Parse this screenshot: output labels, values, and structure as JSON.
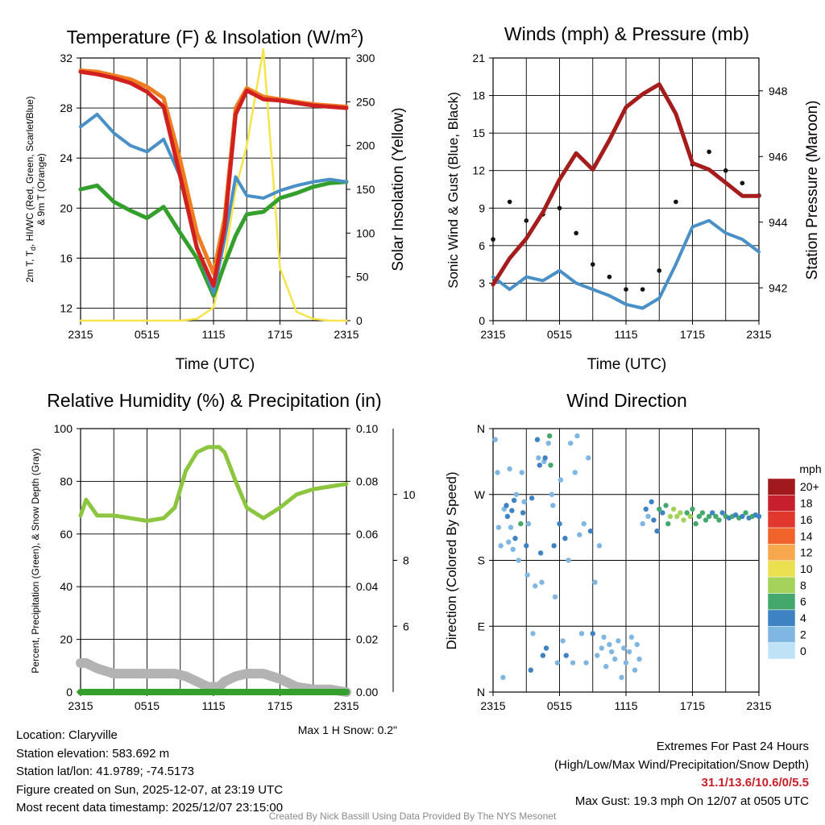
{
  "colors": {
    "red": "#d02020",
    "green": "#33a02c",
    "blue": "#4a90c8",
    "orange": "#f07c20",
    "yellow": "#f5e44a",
    "maroon": "#a51c1c",
    "gray": "#b3b3b3",
    "lightgreen": "#8cc63f",
    "black": "#111111"
  },
  "x_ticks": [
    "2315",
    "0515",
    "1115",
    "1715",
    "2315"
  ],
  "time_axis_label": "Time (UTC)",
  "chart_data": [
    {
      "type": "line",
      "title": "Temperature (F) & Insolation (W/m2)",
      "title_main": "Temperature (F) & Insolation (W/m",
      "title_sup": "2",
      "title_end": ")",
      "xlabel": "Time (UTC)",
      "ylabel_lines": [
        "2m T, T",
        "d",
        ", HI/WC (Red, Green, Scarlet/Blue)",
        "& 9m T (Orange)"
      ],
      "ylabel2": "Solar Insolation (Yellow)",
      "x_hours": [
        0,
        1.5,
        3,
        4.5,
        6,
        7.5,
        9,
        10.5,
        12,
        13,
        14,
        15,
        16.5,
        18,
        19.5,
        21,
        22.5,
        24
      ],
      "ylim": [
        11,
        32
      ],
      "yticks": [
        12,
        16,
        20,
        24,
        28,
        32
      ],
      "y2lim": [
        0,
        300
      ],
      "y2ticks": [
        0,
        50,
        100,
        150,
        200,
        250,
        300
      ],
      "series": [
        {
          "name": "2m T",
          "color": "red",
          "values": [
            30.9,
            30.7,
            30.4,
            30.0,
            29.3,
            28.1,
            22.5,
            16.8,
            13.8,
            18.5,
            27.5,
            29.4,
            28.7,
            28.6,
            28.4,
            28.2,
            28.1,
            28.0
          ]
        },
        {
          "name": "9m T",
          "color": "orange",
          "values": [
            31.0,
            30.9,
            30.6,
            30.3,
            29.7,
            28.8,
            23.8,
            18.0,
            14.8,
            19.2,
            28.0,
            29.6,
            28.9,
            28.7,
            28.5,
            28.3,
            28.2,
            28.1
          ]
        },
        {
          "name": "Td",
          "color": "green",
          "values": [
            21.5,
            21.8,
            20.5,
            19.8,
            19.2,
            20.1,
            18.0,
            16.0,
            13.0,
            15.5,
            17.8,
            19.5,
            19.7,
            20.8,
            21.2,
            21.7,
            22.0,
            22.1
          ]
        },
        {
          "name": "HI/WC",
          "color": "blue",
          "values": [
            26.5,
            27.5,
            26.0,
            25.0,
            24.5,
            25.5,
            22.5,
            17.0,
            13.2,
            17.5,
            22.5,
            21.0,
            20.8,
            21.4,
            21.8,
            22.1,
            22.3,
            22.1
          ]
        },
        {
          "name": "Solar Insolation",
          "color": "yellow",
          "axis": "y2",
          "values": [
            0,
            0,
            0,
            0,
            0,
            0,
            0,
            2,
            15,
            70,
            150,
            200,
            310,
            60,
            10,
            2,
            0,
            0
          ]
        }
      ]
    },
    {
      "type": "line",
      "title": "Winds (mph) & Pressure (mb)",
      "xlabel": "Time (UTC)",
      "ylabel": "Sonic Wind & Gust (Blue, Black)",
      "ylabel2": "Station Pressure (Maroon)",
      "x_hours": [
        0,
        1.5,
        3,
        4.5,
        6,
        7.5,
        9,
        10.5,
        12,
        13.5,
        15,
        16.5,
        18,
        19.5,
        21,
        22.5,
        24
      ],
      "ylim": [
        0,
        21
      ],
      "yticks": [
        0,
        3,
        6,
        9,
        12,
        15,
        18,
        21
      ],
      "y2lim": [
        941.0,
        949.0
      ],
      "y2ticks": [
        942,
        944,
        946,
        948
      ],
      "series": [
        {
          "name": "Sonic Wind",
          "color": "blue",
          "values": [
            3.5,
            2.5,
            3.5,
            3.2,
            4.0,
            3.0,
            2.5,
            2.0,
            1.3,
            1.0,
            1.8,
            4.5,
            7.5,
            8.0,
            7.0,
            6.5,
            5.5
          ]
        },
        {
          "name": "Gust",
          "color": "black",
          "values": [
            6.5,
            9.5,
            8.0,
            8.5,
            9.0,
            7.0,
            4.5,
            3.5,
            2.5,
            2.5,
            4.0,
            9.5,
            12.5,
            13.5,
            12.0,
            11.0,
            10.0
          ]
        },
        {
          "name": "Station Pressure",
          "color": "maroon",
          "axis": "y2",
          "values": [
            942.1,
            942.9,
            943.5,
            944.3,
            945.3,
            946.1,
            945.6,
            946.5,
            947.5,
            947.9,
            948.2,
            947.3,
            945.8,
            945.6,
            945.2,
            944.8,
            944.8
          ]
        }
      ]
    },
    {
      "type": "line",
      "title": "Relative Humidity (%) & Precipitation (in)",
      "ylabel": "Percent, Precipitation (Green), & Snow Depth (Gray)",
      "x_hours": [
        0,
        0.5,
        1.5,
        3,
        4.5,
        6,
        7.5,
        8.5,
        9.5,
        10.5,
        11.5,
        12.5,
        13,
        14,
        15,
        16.5,
        18,
        19.5,
        21,
        22.5,
        24
      ],
      "ylim": [
        0,
        100
      ],
      "yticks": [
        0,
        20,
        40,
        60,
        80,
        100
      ],
      "y2lim": [
        0,
        0.1
      ],
      "y2ticks": [
        0.0,
        0.02,
        0.04,
        0.06,
        0.08,
        0.1
      ],
      "snow_axis_ticks": [
        6,
        8,
        10
      ],
      "series": [
        {
          "name": "Relative Humidity",
          "color": "lightgreen",
          "values": [
            67,
            73,
            67,
            67,
            66,
            65,
            66,
            70,
            84,
            91,
            93,
            93,
            91,
            80,
            70,
            66,
            70,
            75,
            77,
            78,
            79
          ]
        },
        {
          "name": "Snow Depth",
          "color": "gray",
          "values": [
            11,
            11,
            9,
            7,
            7,
            7,
            7,
            7,
            6,
            4,
            2,
            2,
            4,
            6,
            7,
            7,
            5,
            2,
            1,
            1,
            0
          ]
        },
        {
          "name": "Precipitation",
          "color": "green",
          "values": [
            0,
            0,
            0,
            0,
            0,
            0,
            0,
            0,
            0,
            0,
            0,
            0,
            0,
            0,
            0,
            0,
            0,
            0,
            0,
            0,
            0
          ]
        }
      ],
      "note": "Max 1 H Snow: 0.2\""
    },
    {
      "type": "scatter",
      "title": "Wind Direction",
      "ylabel": "Direction (Colored By Speed)",
      "ylim": [
        0,
        360
      ],
      "yticks": [
        {
          "v": 0,
          "label": "N"
        },
        {
          "v": 90,
          "label": "E"
        },
        {
          "v": 180,
          "label": "S"
        },
        {
          "v": 270,
          "label": "W"
        },
        {
          "v": 360,
          "label": "N"
        }
      ],
      "colorbar_unit": "mph",
      "colorbar": [
        {
          "label": "20+",
          "color": "#a0191c"
        },
        {
          "label": "18",
          "color": "#c8202a"
        },
        {
          "label": "16",
          "color": "#e0382c"
        },
        {
          "label": "14",
          "color": "#f0642c"
        },
        {
          "label": "12",
          "color": "#f8a84c"
        },
        {
          "label": "10",
          "color": "#eae050"
        },
        {
          "label": "8",
          "color": "#a4d25a"
        },
        {
          "label": "6",
          "color": "#44a86c"
        },
        {
          "label": "4",
          "color": "#3d82c2"
        },
        {
          "label": "2",
          "color": "#7fb6e2"
        },
        {
          "label": "0",
          "color": "#c0e2f6"
        }
      ],
      "points": [
        [
          0.2,
          345,
          2
        ],
        [
          0.4,
          300,
          2
        ],
        [
          0.5,
          225,
          3
        ],
        [
          0.7,
          200,
          3
        ],
        [
          0.9,
          20,
          2
        ],
        [
          1.0,
          250,
          3
        ],
        [
          1.2,
          255,
          4
        ],
        [
          1.3,
          240,
          4
        ],
        [
          1.4,
          205,
          3
        ],
        [
          1.5,
          305,
          3
        ],
        [
          1.6,
          225,
          3
        ],
        [
          1.7,
          248,
          4
        ],
        [
          1.8,
          195,
          3
        ],
        [
          1.9,
          262,
          5
        ],
        [
          2.0,
          210,
          4
        ],
        [
          2.1,
          270,
          2
        ],
        [
          2.3,
          180,
          3
        ],
        [
          2.5,
          230,
          6
        ],
        [
          2.6,
          300,
          3
        ],
        [
          2.7,
          245,
          4
        ],
        [
          2.8,
          260,
          3
        ],
        [
          3.0,
          200,
          4
        ],
        [
          3.1,
          160,
          3
        ],
        [
          3.2,
          230,
          3
        ],
        [
          3.4,
          30,
          4
        ],
        [
          3.5,
          265,
          4
        ],
        [
          3.6,
          80,
          3
        ],
        [
          3.8,
          145,
          2
        ],
        [
          4.0,
          345,
          4
        ],
        [
          4.1,
          320,
          3
        ],
        [
          4.2,
          310,
          5
        ],
        [
          4.3,
          190,
          4
        ],
        [
          4.4,
          150,
          3
        ],
        [
          4.5,
          50,
          4
        ],
        [
          4.6,
          315,
          3
        ],
        [
          4.7,
          320,
          4
        ],
        [
          4.8,
          60,
          5
        ],
        [
          5.0,
          340,
          3
        ],
        [
          5.1,
          350,
          6
        ],
        [
          5.2,
          310,
          6
        ],
        [
          5.3,
          270,
          3
        ],
        [
          5.4,
          255,
          3
        ],
        [
          5.5,
          200,
          4
        ],
        [
          5.6,
          130,
          2
        ],
        [
          5.8,
          40,
          3
        ],
        [
          6.0,
          230,
          4
        ],
        [
          6.1,
          290,
          3
        ],
        [
          6.3,
          70,
          2
        ],
        [
          6.5,
          210,
          4
        ],
        [
          6.6,
          50,
          5
        ],
        [
          6.8,
          180,
          3
        ],
        [
          7.0,
          340,
          2
        ],
        [
          7.2,
          40,
          3
        ],
        [
          7.4,
          300,
          2
        ],
        [
          7.6,
          350,
          2
        ],
        [
          7.8,
          215,
          3
        ],
        [
          8.0,
          80,
          3
        ],
        [
          8.2,
          230,
          3
        ],
        [
          8.4,
          40,
          3
        ],
        [
          8.6,
          320,
          2
        ],
        [
          8.8,
          220,
          4
        ],
        [
          9.0,
          80,
          4
        ],
        [
          9.2,
          150,
          2
        ],
        [
          9.4,
          50,
          3
        ],
        [
          9.6,
          200,
          2
        ],
        [
          9.8,
          60,
          2
        ],
        [
          10.0,
          75,
          3
        ],
        [
          10.2,
          35,
          2
        ],
        [
          10.5,
          65,
          3
        ],
        [
          10.7,
          55,
          2
        ],
        [
          11.0,
          45,
          2
        ],
        [
          11.3,
          70,
          2
        ],
        [
          11.6,
          20,
          2
        ],
        [
          11.8,
          60,
          2
        ],
        [
          12.0,
          40,
          3
        ],
        [
          12.3,
          55,
          2
        ],
        [
          12.5,
          75,
          2
        ],
        [
          12.8,
          30,
          2
        ],
        [
          13.0,
          65,
          2
        ],
        [
          13.2,
          45,
          2
        ],
        [
          13.5,
          230,
          2
        ],
        [
          13.8,
          250,
          4
        ],
        [
          14.0,
          240,
          3
        ],
        [
          14.3,
          260,
          4
        ],
        [
          14.5,
          235,
          4
        ],
        [
          14.8,
          220,
          4
        ],
        [
          15.0,
          250,
          6
        ],
        [
          15.3,
          245,
          5
        ],
        [
          15.6,
          255,
          7
        ],
        [
          15.8,
          230,
          6
        ],
        [
          16.0,
          240,
          8
        ],
        [
          16.3,
          250,
          9
        ],
        [
          16.6,
          240,
          9
        ],
        [
          16.9,
          245,
          8
        ],
        [
          17.2,
          235,
          8
        ],
        [
          17.5,
          245,
          7
        ],
        [
          17.8,
          240,
          8
        ],
        [
          18.0,
          250,
          6
        ],
        [
          18.3,
          230,
          7
        ],
        [
          18.6,
          240,
          6
        ],
        [
          18.9,
          245,
          7
        ],
        [
          19.2,
          235,
          6
        ],
        [
          19.5,
          240,
          6
        ],
        [
          19.8,
          245,
          5
        ],
        [
          20.1,
          240,
          6
        ],
        [
          20.4,
          235,
          6
        ],
        [
          20.7,
          245,
          5
        ],
        [
          21.0,
          240,
          6
        ],
        [
          21.3,
          238,
          5
        ],
        [
          21.6,
          240,
          6
        ],
        [
          21.9,
          242,
          5
        ],
        [
          22.2,
          238,
          6
        ],
        [
          22.5,
          240,
          5
        ],
        [
          22.8,
          245,
          6
        ],
        [
          23.1,
          238,
          5
        ],
        [
          23.4,
          240,
          6
        ],
        [
          23.7,
          242,
          5
        ],
        [
          24.0,
          240,
          5
        ]
      ]
    }
  ],
  "info_left": {
    "location": "Location: Claryville",
    "elevation": "Station elevation: 583.692 m",
    "latlon": "Station lat/lon: 41.9789; -74.5173",
    "created": "Figure created on Sun, 2025-12-07, at 23:19 UTC",
    "recent": "Most recent data timestamp: 2025/12/07 23:15:00"
  },
  "info_right": {
    "title": "Extremes For Past 24 Hours",
    "subtitle": "(High/Low/Max Wind/Precipitation/Snow Depth)",
    "values": "31.1/13.6/10.6/0/5.5",
    "gust": "Max Gust: 19.3 mph On 12/07 at 0505 UTC"
  },
  "footer": "Created By Nick Bassill Using Data Provided By The NYS Mesonet"
}
